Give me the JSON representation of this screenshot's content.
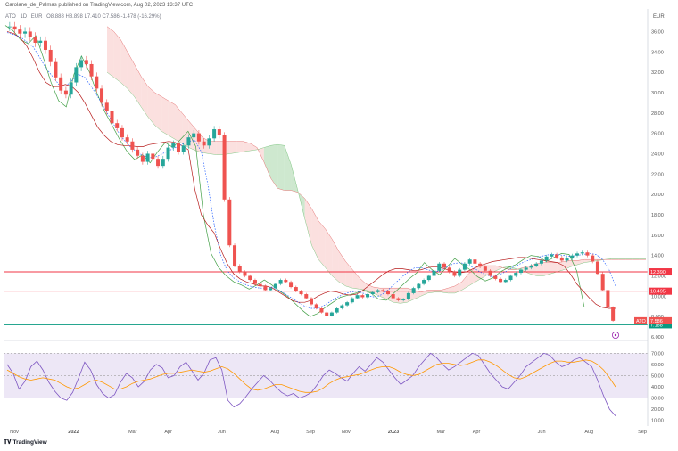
{
  "header": {
    "publisher_line": "Carolane_de_Palmas published on TradingView.com, Aug 02, 2023 13:37 UTC"
  },
  "legend": {
    "symbol": "ATO",
    "interval": "1D",
    "currency_note": "EUR",
    "ohlc": "O8.888 H8.898 L7.410 C7.586 -1.478 (-16.29%)"
  },
  "brand": {
    "logo_text": "TradingView"
  },
  "currency_label": "EUR",
  "colors": {
    "up_candle": "#26a69a",
    "down_candle": "#ef5350",
    "cloud_bull": "#a5d6a7",
    "cloud_bear": "#f8c7c4",
    "conversion_line": "#2962ff",
    "base_line": "#b71c1c",
    "lagging_span": "#43a047",
    "horizontal_red": "#f23645",
    "horizontal_green": "#089981",
    "rsi_line": "#7e57c2",
    "rsi_ma": "#ff9800",
    "rsi_band": "#ede7f6"
  },
  "chart_data": [
    {
      "type": "line",
      "subtype": "candlestick_with_ichimoku",
      "y_axis_ticks": [
        "36.00",
        "34.00",
        "32.00",
        "30.00",
        "28.00",
        "26.00",
        "24.00",
        "22.00",
        "20.00",
        "18.00",
        "16.00",
        "14.00",
        "12.000",
        "10.000",
        "8.000",
        "6.000"
      ],
      "y_range": [
        6,
        37
      ],
      "x_axis_labels": [
        "Nov",
        "2022",
        "Mar",
        "Apr",
        "Jun",
        "Aug",
        "Sep",
        "Nov",
        "2023",
        "Mar",
        "Apr",
        "Jun",
        "Aug",
        "Sep"
      ],
      "x_axis_label_positions": [
        0.0,
        1.0,
        2.0,
        2.6,
        3.5,
        4.4,
        5.0,
        5.6,
        6.4,
        7.2,
        7.8,
        8.9,
        9.7,
        10.6
      ],
      "price_levels": [
        {
          "label": "12.390",
          "value": 12.39,
          "color": "red"
        },
        {
          "label": "10.495",
          "value": 10.495,
          "color": "red"
        },
        {
          "label": "7.188",
          "value": 7.188,
          "color": "green"
        }
      ],
      "last_price_tag": {
        "symbol": "ATO",
        "value_label": "7.586",
        "value": 7.586
      },
      "close_series": [
        36.5,
        36.2,
        35.8,
        36.0,
        35.5,
        34.9,
        35.1,
        34.2,
        33.0,
        31.5,
        30.2,
        29.8,
        31.0,
        32.5,
        33.2,
        32.8,
        31.6,
        30.4,
        29.0,
        28.2,
        27.0,
        26.5,
        25.6,
        25.2,
        24.4,
        23.8,
        23.2,
        24.0,
        23.5,
        22.8,
        23.5,
        24.6,
        25.0,
        24.2,
        24.8,
        25.6,
        26.0,
        25.2,
        24.8,
        25.5,
        26.4,
        25.8,
        19.5,
        15.0,
        13.0,
        12.4,
        12.0,
        11.6,
        11.2,
        11.0,
        10.6,
        10.8,
        11.2,
        11.6,
        11.4,
        10.9,
        10.5,
        10.2,
        9.8,
        9.2,
        8.8,
        8.4,
        8.1,
        8.4,
        8.8,
        9.1,
        9.4,
        9.8,
        10.1,
        9.9,
        10.2,
        10.4,
        10.6,
        10.5,
        10.2,
        9.8,
        9.6,
        9.7,
        10.3,
        10.8,
        11.2,
        11.6,
        12.0,
        12.5,
        13.2,
        12.8,
        12.4,
        12.0,
        12.6,
        13.2,
        13.6,
        13.2,
        12.9,
        12.5,
        12.0,
        11.7,
        11.4,
        11.6,
        12.0,
        12.3,
        12.6,
        12.8,
        13.0,
        13.2,
        13.5,
        13.9,
        14.1,
        13.8,
        13.5,
        13.7,
        14.0,
        14.2,
        14.3,
        14.0,
        13.4,
        12.2,
        10.6,
        8.9,
        7.59
      ],
      "conversion_line_series": [
        35.9,
        35.7,
        35.5,
        35.0,
        34.5,
        33.5,
        32.4,
        31.6,
        30.8,
        30.6,
        31.2,
        31.8,
        31.5,
        30.6,
        29.6,
        28.5,
        27.4,
        26.3,
        25.4,
        24.7,
        24.2,
        23.8,
        23.6,
        23.7,
        24.0,
        24.3,
        24.6,
        24.9,
        25.2,
        25.3,
        24.2,
        21.0,
        17.0,
        14.0,
        12.5,
        11.8,
        11.4,
        11.1,
        10.9,
        10.8,
        10.8,
        10.9,
        10.6,
        10.2,
        9.8,
        9.4,
        9.0,
        8.8,
        8.8,
        9.1,
        9.5,
        9.9,
        10.2,
        10.4,
        10.5,
        10.3,
        10.0,
        9.9,
        10.2,
        10.7,
        11.3,
        11.9,
        12.4,
        12.8,
        12.8,
        12.6,
        12.4,
        12.5,
        12.9,
        13.2,
        13.3,
        13.1,
        12.8,
        12.4,
        12.1,
        11.9,
        12.1,
        12.4,
        12.8,
        13.1,
        13.4,
        13.6,
        13.8,
        14.0,
        14.1,
        14.1,
        14.0,
        13.9,
        14.0,
        14.1,
        14.2,
        14.1,
        13.6,
        12.6,
        11.0
      ],
      "base_line_series": [
        36.0,
        35.8,
        35.4,
        34.6,
        33.4,
        32.0,
        31.0,
        30.6,
        30.6,
        30.8,
        30.6,
        30.0,
        29.0,
        27.8,
        26.6,
        25.8,
        25.2,
        24.9,
        24.8,
        24.8,
        24.7,
        24.7,
        24.9,
        25.0,
        25.1,
        25.2,
        25.1,
        24.8,
        24.4,
        20.5,
        18.0,
        17.0,
        16.2,
        14.6,
        13.2,
        12.2,
        11.7,
        11.4,
        11.2,
        11.0,
        11.0,
        10.8,
        10.4,
        10.0,
        9.6,
        9.4,
        9.4,
        9.6,
        10.0,
        10.3,
        10.5,
        10.4,
        10.2,
        10.1,
        10.2,
        10.6,
        11.1,
        11.6,
        12.1,
        12.5,
        12.7,
        12.7,
        12.6,
        12.5,
        12.6,
        12.8,
        12.9,
        12.8,
        12.6,
        12.4,
        12.3,
        12.4,
        12.7,
        13.0,
        13.2,
        13.4,
        13.5,
        13.6,
        13.7,
        13.8,
        13.8,
        13.7,
        13.6,
        13.5,
        13.4,
        13.3,
        13.0,
        12.2,
        11.2,
        10.5,
        9.8,
        9.2,
        8.9,
        8.8,
        8.8
      ],
      "lagging_span_series": [
        36.6,
        36.1,
        35.2,
        34.8,
        35.6,
        33.4,
        31.0,
        29.2,
        28.6,
        31.8,
        33.6,
        32.1,
        30.0,
        28.2,
        26.8,
        25.4,
        24.2,
        23.4,
        23.9,
        23.1,
        24.2,
        25.1,
        24.6,
        25.4,
        26.2,
        24.7,
        18.0,
        14.2,
        12.8,
        12.0,
        11.4,
        11.1,
        10.7,
        11.1,
        11.6,
        11.1,
        10.5,
        10.0,
        9.3,
        8.6,
        8.0,
        8.3,
        8.9,
        9.4,
        9.9,
        10.1,
        10.3,
        10.6,
        10.3,
        9.7,
        9.6,
        10.3,
        11.0,
        11.7,
        12.3,
        13.3,
        12.6,
        12.1,
        12.9,
        13.7,
        13.1,
        12.6,
        11.9,
        11.5,
        11.8,
        12.4,
        12.8,
        13.1,
        13.6,
        14.0,
        13.9,
        13.4,
        13.8,
        14.2,
        14.1,
        12.5,
        8.9
      ],
      "senkou_a_series": [
        32.0,
        31.5,
        31.0,
        30.4,
        29.6,
        28.6,
        27.6,
        26.8,
        26.2,
        25.8,
        25.4,
        25.0,
        24.6,
        24.3,
        24.1,
        24.0,
        23.9,
        23.9,
        24.0,
        24.1,
        24.2,
        24.3,
        24.4,
        24.6,
        24.8,
        24.9,
        24.8,
        22.9,
        20.3,
        17.6,
        15.0,
        13.6,
        12.8,
        12.0,
        11.4,
        11.0,
        10.8,
        10.7,
        10.6,
        10.3,
        10.0,
        9.7,
        9.4,
        9.3,
        9.4,
        9.7,
        10.0,
        10.3,
        10.4,
        10.4,
        10.3,
        10.3,
        10.6,
        11.0,
        11.4,
        11.8,
        12.2,
        12.5,
        12.8,
        12.9,
        12.7,
        12.5,
        12.2,
        12.0,
        12.0,
        12.2,
        12.4,
        12.6,
        12.9,
        13.1,
        13.3,
        13.4,
        13.5,
        13.6,
        13.7,
        13.7,
        13.7,
        13.7,
        13.7,
        13.7
      ],
      "senkou_b_series": [
        36.5,
        36.0,
        35.2,
        34.0,
        32.8,
        31.6,
        30.6,
        30.0,
        29.6,
        29.2,
        28.8,
        28.0,
        27.2,
        26.4,
        25.6,
        25.2,
        25.2,
        25.2,
        25.2,
        25.2,
        25.2,
        25.0,
        24.6,
        23.2,
        21.6,
        20.6,
        20.4,
        20.4,
        20.2,
        19.6,
        18.6,
        17.4,
        16.6,
        15.6,
        14.4,
        13.4,
        12.6,
        11.8,
        11.2,
        10.9,
        10.8,
        10.8,
        10.8,
        10.8,
        10.8,
        10.6,
        10.4,
        10.6,
        10.6,
        10.6,
        10.8,
        11.0,
        11.4,
        12.2,
        12.8,
        13.0,
        13.0,
        13.0,
        12.8,
        12.6,
        12.6,
        12.8,
        13.0,
        13.2,
        13.3,
        13.3,
        13.3,
        13.4,
        13.5,
        13.5,
        13.6,
        13.6,
        13.6,
        13.6,
        13.6,
        13.6,
        13.6,
        13.6,
        13.6,
        13.6
      ]
    },
    {
      "type": "line",
      "subtype": "rsi",
      "y_axis_ticks": [
        "70.00",
        "60.00",
        "50.00",
        "40.00",
        "30.00",
        "20.00",
        "10.00"
      ],
      "y_range": [
        5,
        75
      ],
      "bands": [
        30,
        70
      ],
      "rsi_series": [
        60,
        52,
        38,
        45,
        58,
        63,
        55,
        44,
        36,
        30,
        28,
        35,
        48,
        62,
        55,
        42,
        34,
        30,
        33,
        44,
        52,
        48,
        40,
        45,
        55,
        60,
        57,
        48,
        50,
        58,
        62,
        54,
        46,
        52,
        64,
        66,
        55,
        28,
        22,
        25,
        31,
        38,
        44,
        50,
        46,
        40,
        35,
        32,
        34,
        30,
        32,
        35,
        42,
        50,
        55,
        52,
        48,
        45,
        52,
        58,
        54,
        60,
        66,
        62,
        55,
        48,
        42,
        46,
        50,
        58,
        64,
        70,
        66,
        60,
        55,
        58,
        62,
        66,
        70,
        68,
        60,
        52,
        46,
        40,
        38,
        44,
        50,
        58,
        62,
        66,
        70,
        68,
        62,
        58,
        60,
        64,
        66,
        62,
        58,
        46,
        32,
        20,
        14
      ],
      "rsi_ma_series": [
        55,
        52,
        49,
        47,
        46,
        47,
        48,
        47,
        46,
        43,
        40,
        38,
        39,
        42,
        45,
        46,
        44,
        41,
        38,
        38,
        40,
        43,
        45,
        46,
        47,
        49,
        51,
        52,
        52,
        53,
        54,
        55,
        54,
        53,
        54,
        56,
        58,
        56,
        52,
        47,
        42,
        38,
        37,
        38,
        40,
        42,
        42,
        40,
        38,
        36,
        35,
        35,
        36,
        39,
        43,
        46,
        48,
        49,
        50,
        51,
        53,
        55,
        57,
        58,
        58,
        56,
        53,
        51,
        50,
        51,
        54,
        57,
        60,
        61,
        61,
        60,
        59,
        60,
        62,
        64,
        64,
        62,
        59,
        55,
        51,
        48,
        47,
        49,
        52,
        55,
        58,
        61,
        63,
        63,
        62,
        62,
        63,
        64,
        63,
        60,
        55,
        48,
        40
      ]
    }
  ]
}
